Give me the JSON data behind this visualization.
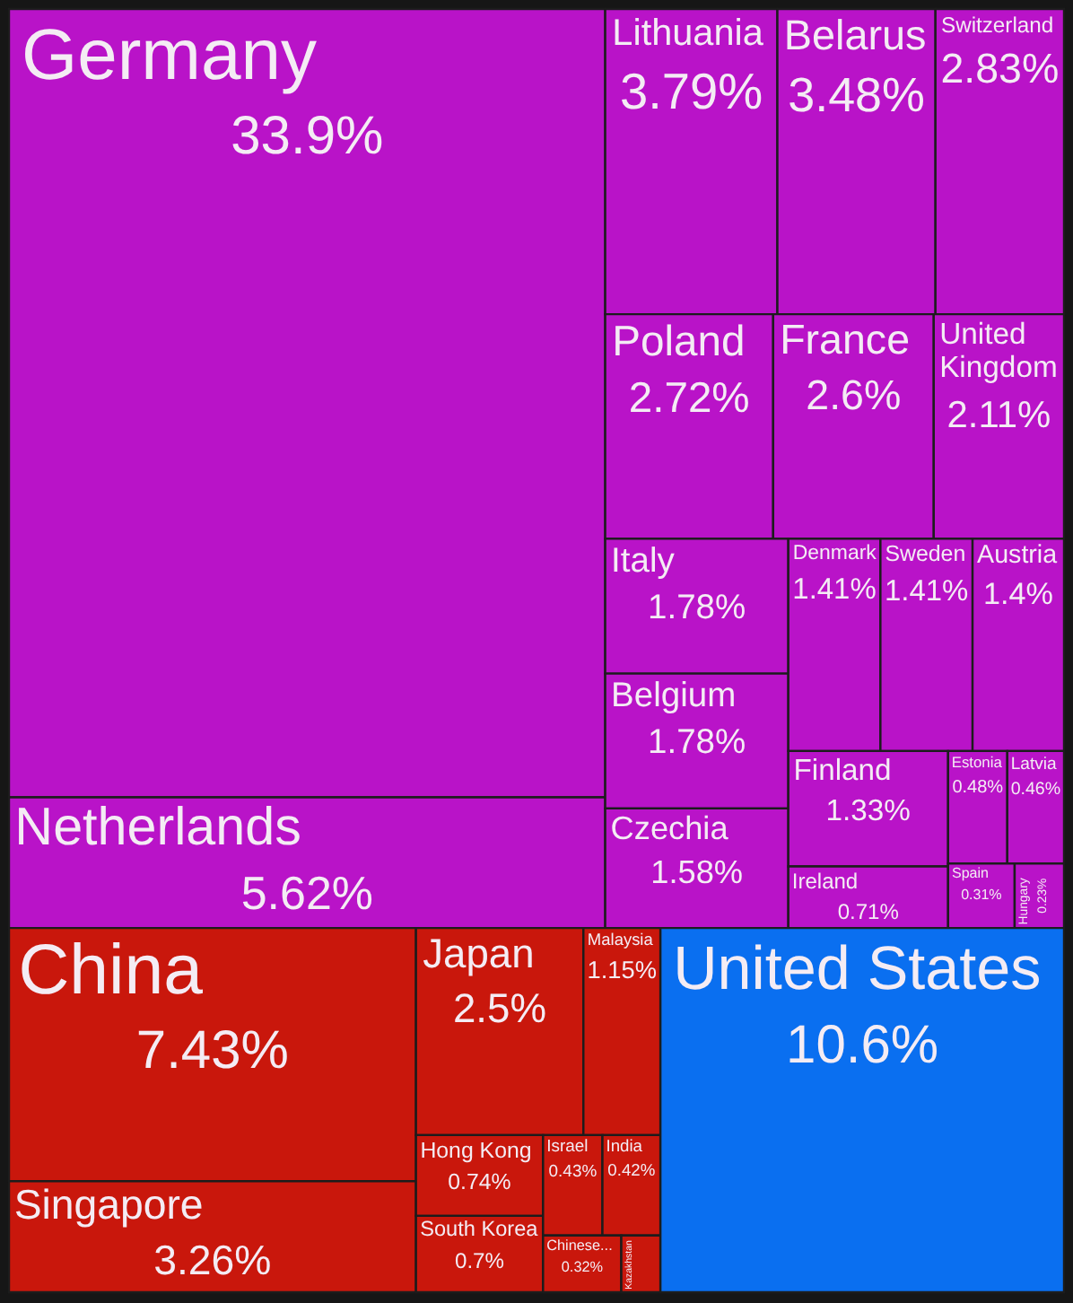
{
  "chart_data": {
    "type": "other",
    "categories": [
      "Germany",
      "Netherlands",
      "Lithuania",
      "Belarus",
      "Switzerland",
      "Poland",
      "France",
      "United Kingdom",
      "Italy",
      "Belgium",
      "Czechia",
      "Denmark",
      "Sweden",
      "Austria",
      "Finland",
      "Ireland",
      "Estonia",
      "Latvia",
      "Spain",
      "Hungary",
      "China",
      "Singapore",
      "Japan",
      "Malaysia",
      "Hong Kong",
      "South Korea",
      "Israel",
      "India",
      "Chinese...",
      "Kazakhstan",
      "United States"
    ],
    "values": [
      33.9,
      5.62,
      3.79,
      3.48,
      2.83,
      2.72,
      2.6,
      2.11,
      1.78,
      1.78,
      1.58,
      1.41,
      1.41,
      1.4,
      1.33,
      0.71,
      0.48,
      0.46,
      0.31,
      0.23,
      7.43,
      3.26,
      2.5,
      1.15,
      0.74,
      0.7,
      0.43,
      0.42,
      0.32,
      null,
      10.6
    ],
    "value_labels": [
      "33.9%",
      "5.62%",
      "3.79%",
      "3.48%",
      "2.83%",
      "2.72%",
      "2.6%",
      "2.11%",
      "1.78%",
      "1.78%",
      "1.58%",
      "1.41%",
      "1.41%",
      "1.4%",
      "1.33%",
      "0.71%",
      "0.48%",
      "0.46%",
      "0.31%",
      "0.23%",
      "7.43%",
      "3.26%",
      "2.5%",
      "1.15%",
      "0.74%",
      "0.7%",
      "0.43%",
      "0.42%",
      "0.32%",
      null,
      "10.6%"
    ],
    "colors": [
      "#b913c8",
      "#b913c8",
      "#b913c8",
      "#b913c8",
      "#b913c8",
      "#b913c8",
      "#b913c8",
      "#b913c8",
      "#b913c8",
      "#b913c8",
      "#b913c8",
      "#b913c8",
      "#b913c8",
      "#b913c8",
      "#b913c8",
      "#b913c8",
      "#b913c8",
      "#b913c8",
      "#b913c8",
      "#b913c8",
      "#c9170c",
      "#c9170c",
      "#c9170c",
      "#c9170c",
      "#c9170c",
      "#c9170c",
      "#c9170c",
      "#c9170c",
      "#c9170c",
      "#c9170c",
      "#0a6ff0"
    ]
  }
}
